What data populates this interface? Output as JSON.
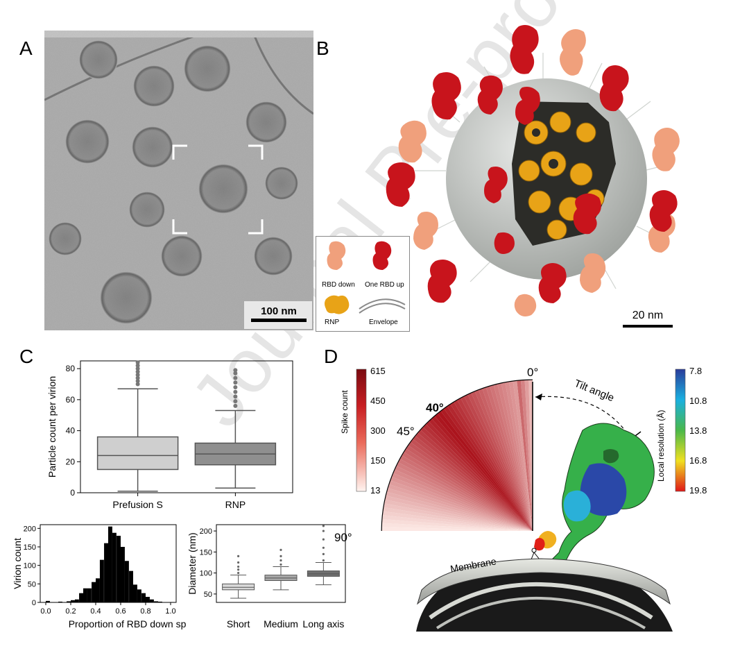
{
  "panels": {
    "a": "A",
    "b": "B",
    "c": "C",
    "d": "D"
  },
  "panel_a": {
    "scale_bar": "100 nm"
  },
  "panel_b": {
    "scale_bar": "20 nm",
    "legend": {
      "rbd_down": "RBD down",
      "one_rbd_up": "One RBD up",
      "rnp": "RNP",
      "envelope": "Envelope"
    },
    "colors": {
      "rbd_down": "#f0a07c",
      "one_rbd_up": "#c8141c",
      "rnp": "#e8a317",
      "envelope": "#c8ccc8"
    }
  },
  "panel_c": {
    "boxplot_main": {
      "ylabel": "Particle count per virion",
      "yticks": [
        "0",
        "20",
        "40",
        "60",
        "80"
      ],
      "categories": [
        "Prefusion S",
        "RNP"
      ]
    },
    "histogram": {
      "ylabel": "Virion count",
      "xlabel": "Proportion of RBD down spikes",
      "yticks": [
        "0",
        "50",
        "100",
        "150",
        "200"
      ],
      "xticks": [
        "0.0",
        "0.2",
        "0.4",
        "0.6",
        "0.8",
        "1.0"
      ]
    },
    "boxplot_diameter": {
      "ylabel": "Diameter (nm)",
      "yticks": [
        "50",
        "100",
        "150",
        "200"
      ],
      "categories": [
        "Short",
        "Medium",
        "Long axis"
      ]
    }
  },
  "panel_d": {
    "angle_0": "0°",
    "angle_40": "40°",
    "angle_45": "45°",
    "angle_90": "90°",
    "tilt_label": "Tilt angle",
    "membrane_label": "Membrane",
    "spike_colorbar": {
      "label": "Spike count",
      "ticks": [
        "615",
        "450",
        "300",
        "150",
        "13"
      ]
    },
    "resolution_colorbar": {
      "label": "Local resolution (Å)",
      "ticks": [
        "7.8",
        "10.8",
        "13.8",
        "16.8",
        "19.8"
      ]
    }
  },
  "watermark": "Journal Pre-proof",
  "chart_data": [
    {
      "type": "box",
      "ylabel": "Particle count per virion",
      "ylim": [
        0,
        85
      ],
      "categories": [
        "Prefusion S",
        "RNP"
      ],
      "series": [
        {
          "q1": 15,
          "median": 24,
          "q3": 36,
          "whisker_low": 1,
          "whisker_high": 67,
          "outliers": [
            70,
            72,
            74,
            76,
            78,
            80,
            82,
            84
          ]
        },
        {
          "q1": 18,
          "median": 25,
          "q3": 32,
          "whisker_low": 3,
          "whisker_high": 53,
          "outliers": [
            56,
            59,
            62,
            65,
            68,
            71,
            74,
            77,
            79
          ]
        }
      ]
    },
    {
      "type": "bar",
      "xlabel": "Proportion of RBD down spikes",
      "ylabel": "Virion count",
      "xlim": [
        0.0,
        1.0
      ],
      "ylim": [
        0,
        210
      ],
      "bin_width": 0.033,
      "x": [
        0.0,
        0.1,
        0.167,
        0.2,
        0.233,
        0.267,
        0.3,
        0.333,
        0.367,
        0.4,
        0.433,
        0.467,
        0.5,
        0.533,
        0.567,
        0.6,
        0.633,
        0.667,
        0.7,
        0.733,
        0.767,
        0.8,
        0.833,
        0.867,
        0.9,
        1.0
      ],
      "values": [
        4,
        2,
        3,
        6,
        8,
        25,
        38,
        38,
        55,
        65,
        115,
        160,
        205,
        188,
        180,
        150,
        112,
        85,
        48,
        35,
        25,
        15,
        8,
        3,
        2,
        1
      ]
    },
    {
      "type": "box",
      "ylabel": "Diameter (nm)",
      "ylim": [
        30,
        215
      ],
      "categories": [
        "Short",
        "Medium",
        "Long axis"
      ],
      "series": [
        {
          "q1": 60,
          "median": 66,
          "q3": 74,
          "whisker_low": 40,
          "whisker_high": 95,
          "outliers": [
            100,
            108,
            115,
            125,
            140
          ]
        },
        {
          "q1": 82,
          "median": 88,
          "q3": 95,
          "whisker_low": 60,
          "whisker_high": 115,
          "outliers": [
            120,
            130,
            140,
            155
          ]
        },
        {
          "q1": 92,
          "median": 98,
          "q3": 105,
          "whisker_low": 72,
          "whisker_high": 125,
          "outliers": [
            130,
            145,
            160,
            180,
            200,
            212
          ]
        }
      ]
    }
  ]
}
